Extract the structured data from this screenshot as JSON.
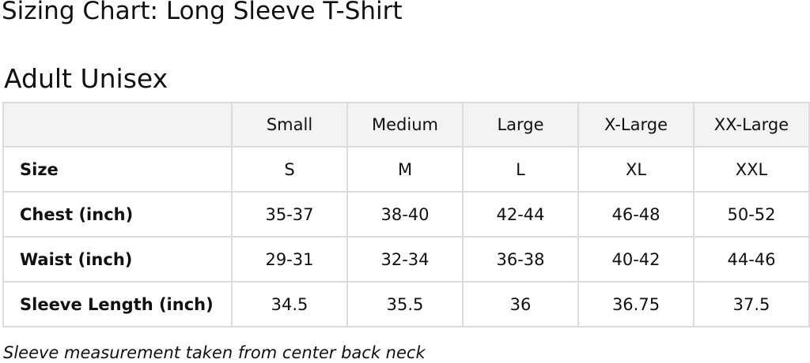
{
  "title": "Sizing Chart: Long Sleeve T-Shirt",
  "subtitle": "Adult Unisex",
  "table": {
    "headers": [
      "",
      "Small",
      "Medium",
      "Large",
      "X-Large",
      "XX-Large"
    ],
    "rows": [
      {
        "label": "Size",
        "values": [
          "S",
          "M",
          "L",
          "XL",
          "XXL"
        ]
      },
      {
        "label": "Chest (inch)",
        "values": [
          "35-37",
          "38-40",
          "42-44",
          "46-48",
          "50-52"
        ]
      },
      {
        "label": "Waist (inch)",
        "values": [
          "29-31",
          "32-34",
          "36-38",
          "40-42",
          "44-46"
        ]
      },
      {
        "label": "Sleeve Length (inch)",
        "values": [
          "34.5",
          "35.5",
          "36",
          "36.75",
          "37.5"
        ]
      }
    ]
  },
  "note": "Sleeve measurement taken from center back neck"
}
